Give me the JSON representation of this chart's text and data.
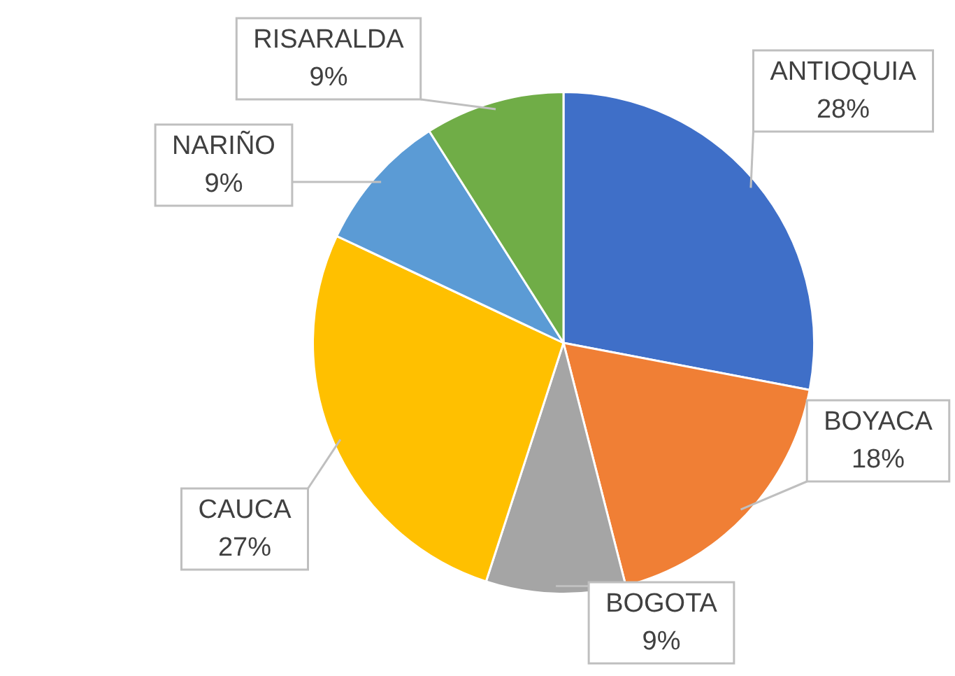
{
  "chart_data": {
    "type": "pie",
    "categories": [
      "ANTIOQUIA",
      "BOYACA",
      "BOGOTA",
      "CAUCA",
      "NARIÑO",
      "RISARALDA"
    ],
    "values": [
      28,
      18,
      9,
      27,
      9,
      9
    ],
    "value_labels": [
      "28%",
      "18%",
      "9%",
      "27%",
      "9%",
      "9%"
    ],
    "colors": [
      "#3f6fc8",
      "#f07f35",
      "#a5a5a5",
      "#ffc000",
      "#5b9bd5",
      "#70ad47"
    ]
  }
}
